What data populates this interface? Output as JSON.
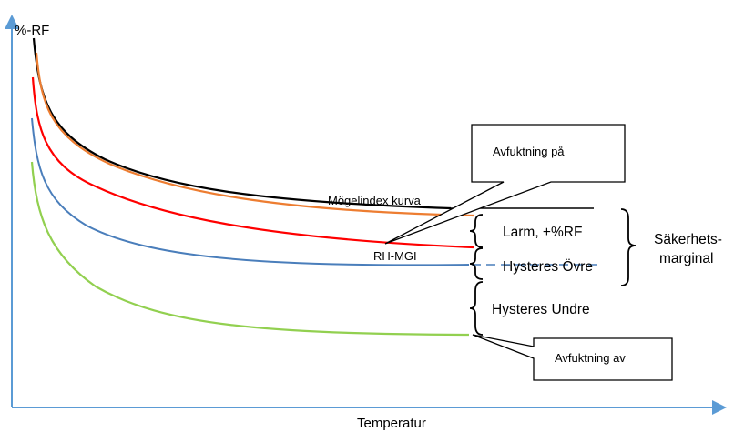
{
  "axes": {
    "y_label": "%-RF",
    "x_label": "Temperatur",
    "axis_color": "#5b9bd5"
  },
  "curves": [
    {
      "name": "Mögelindex kurva",
      "color": "#000000"
    },
    {
      "name": "",
      "color": "#ed7d31"
    },
    {
      "name": "",
      "color": "#ff0000"
    },
    {
      "name": "RH-MGI",
      "color": "#4a7ebb"
    },
    {
      "name": "",
      "color": "#92d050"
    }
  ],
  "brackets": {
    "larm": "Larm, +%RF",
    "hysteres_ovre": "Hysteres Övre",
    "hysteres_undre": "Hysteres Undre",
    "sakerhet_line1": "Säkerhets-",
    "sakerhet_line2": "marginal"
  },
  "callouts": {
    "on": "Avfuktning på",
    "off": "Avfuktning av"
  }
}
